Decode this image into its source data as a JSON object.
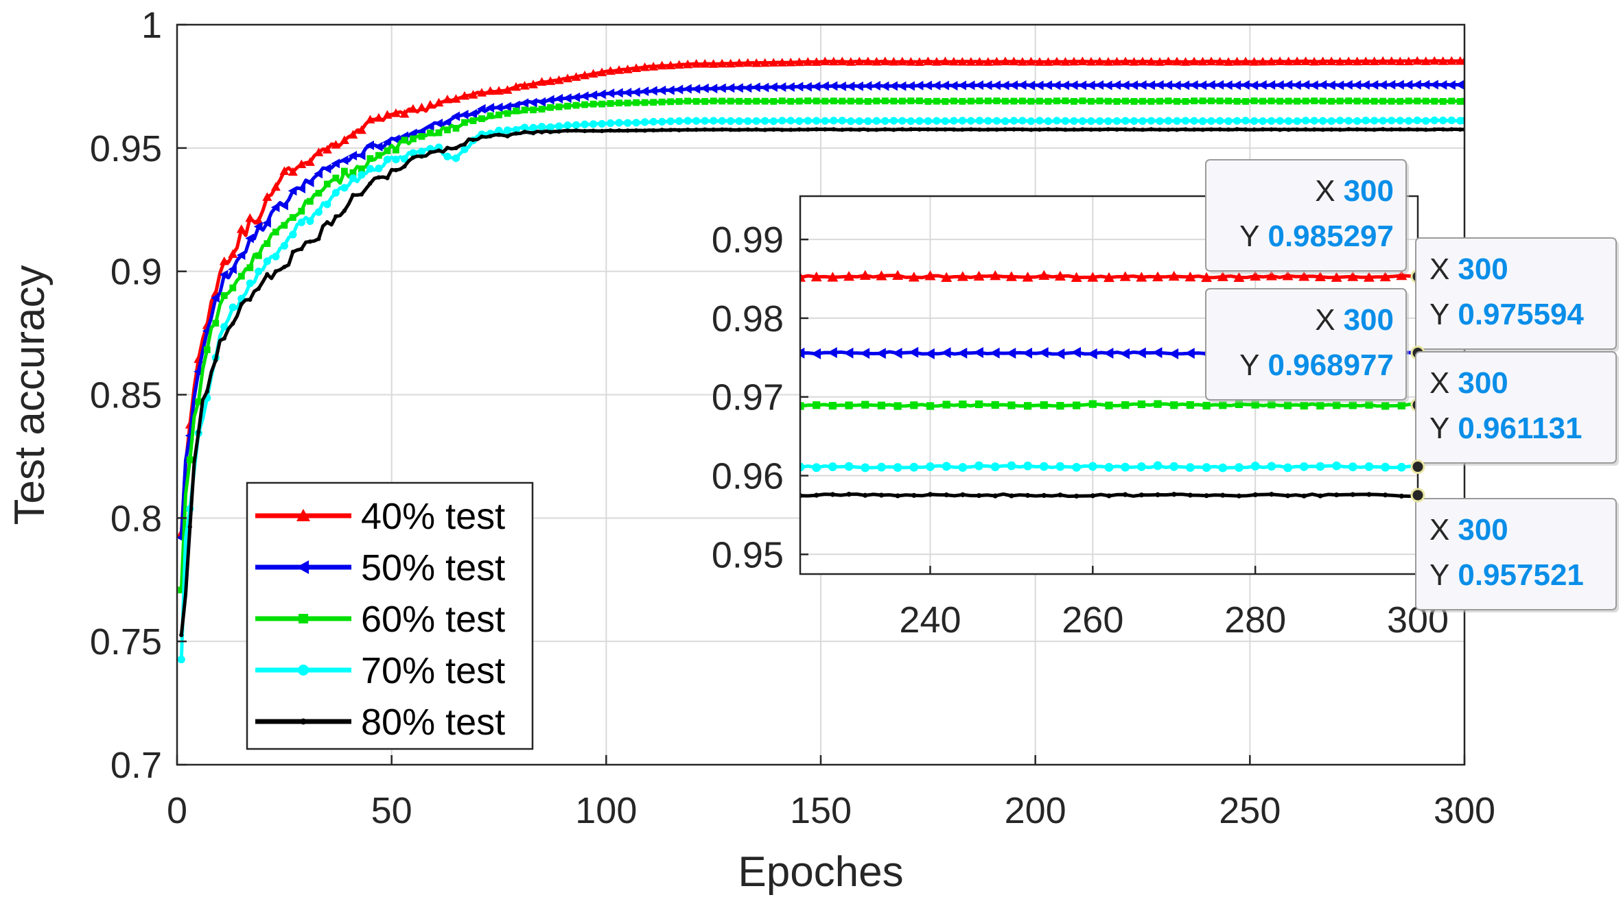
{
  "chart_data": {
    "type": "line",
    "title": "",
    "xlabel": "Epoches",
    "ylabel": "Test accuracy",
    "xlim": [
      0,
      300
    ],
    "ylim": [
      0.7,
      1.0
    ],
    "xticks": [
      0,
      50,
      100,
      150,
      200,
      250,
      300
    ],
    "yticks": [
      0.7,
      0.75,
      0.8,
      0.85,
      0.9,
      0.95,
      1.0
    ],
    "xtick_labels": [
      "0",
      "50",
      "100",
      "150",
      "200",
      "250",
      "300"
    ],
    "ytick_labels": [
      "0.7",
      "0.75",
      "0.8",
      "0.85",
      "0.9",
      "0.95",
      "1"
    ],
    "grid": true,
    "legend_position": "bottom-left",
    "series": [
      {
        "name": "40% test",
        "color": "#ff0000",
        "marker": "triangle-up",
        "final": 0.985297,
        "x": [
          1,
          2,
          4,
          6,
          8,
          10,
          15,
          20,
          25,
          30,
          35,
          40,
          45,
          50,
          55,
          60,
          65,
          70,
          80,
          90,
          100,
          110,
          120,
          150,
          200,
          250,
          300
        ],
        "y": [
          0.796,
          0.82,
          0.855,
          0.873,
          0.888,
          0.9,
          0.915,
          0.925,
          0.94,
          0.945,
          0.95,
          0.955,
          0.96,
          0.963,
          0.965,
          0.967,
          0.97,
          0.972,
          0.975,
          0.978,
          0.981,
          0.983,
          0.984,
          0.985,
          0.985,
          0.985,
          0.985297
        ]
      },
      {
        "name": "50% test",
        "color": "#0000ee",
        "marker": "triangle-left",
        "final": 0.975594,
        "x": [
          1,
          2,
          4,
          6,
          8,
          10,
          15,
          20,
          25,
          30,
          35,
          40,
          45,
          50,
          55,
          60,
          65,
          70,
          80,
          90,
          100,
          110,
          120,
          150,
          200,
          250,
          300
        ],
        "y": [
          0.79,
          0.822,
          0.85,
          0.866,
          0.88,
          0.893,
          0.908,
          0.918,
          0.928,
          0.936,
          0.942,
          0.946,
          0.95,
          0.953,
          0.956,
          0.959,
          0.962,
          0.965,
          0.968,
          0.97,
          0.972,
          0.973,
          0.974,
          0.975,
          0.9755,
          0.9755,
          0.975594
        ]
      },
      {
        "name": "60% test",
        "color": "#00e000",
        "marker": "square",
        "final": 0.968977,
        "x": [
          1,
          2,
          4,
          6,
          8,
          10,
          15,
          20,
          25,
          30,
          35,
          40,
          45,
          50,
          55,
          60,
          65,
          70,
          80,
          90,
          100,
          110,
          120,
          150,
          200,
          250,
          300
        ],
        "y": [
          0.77,
          0.81,
          0.84,
          0.86,
          0.875,
          0.885,
          0.9,
          0.91,
          0.918,
          0.927,
          0.934,
          0.94,
          0.945,
          0.95,
          0.953,
          0.956,
          0.959,
          0.962,
          0.965,
          0.967,
          0.968,
          0.9685,
          0.969,
          0.969,
          0.969,
          0.969,
          0.968977
        ]
      },
      {
        "name": "70% test",
        "color": "#00ffff",
        "marker": "circle",
        "final": 0.961131,
        "x": [
          1,
          2,
          4,
          6,
          8,
          10,
          15,
          20,
          25,
          30,
          35,
          40,
          45,
          50,
          55,
          60,
          65,
          70,
          80,
          90,
          100,
          110,
          120,
          150,
          200,
          250,
          300
        ],
        "y": [
          0.745,
          0.79,
          0.82,
          0.843,
          0.86,
          0.873,
          0.89,
          0.903,
          0.912,
          0.92,
          0.928,
          0.935,
          0.94,
          0.945,
          0.948,
          0.95,
          0.946,
          0.955,
          0.958,
          0.959,
          0.96,
          0.9605,
          0.961,
          0.961,
          0.961,
          0.961,
          0.961131
        ]
      },
      {
        "name": "80% test",
        "color": "#000000",
        "marker": "point",
        "final": 0.957521,
        "x": [
          1,
          2,
          4,
          6,
          8,
          10,
          15,
          20,
          25,
          30,
          35,
          40,
          45,
          50,
          55,
          60,
          65,
          70,
          80,
          90,
          100,
          110,
          120,
          150,
          200,
          250,
          300
        ],
        "y": [
          0.75,
          0.77,
          0.82,
          0.845,
          0.86,
          0.87,
          0.885,
          0.895,
          0.903,
          0.91,
          0.918,
          0.928,
          0.936,
          0.94,
          0.945,
          0.948,
          0.951,
          0.954,
          0.956,
          0.957,
          0.957,
          0.9572,
          0.9574,
          0.9575,
          0.9575,
          0.9575,
          0.957521
        ]
      }
    ],
    "inset": {
      "xlim": [
        224,
        300
      ],
      "ylim": [
        0.9475,
        0.9955
      ],
      "xticks": [
        240,
        260,
        280,
        300
      ],
      "yticks": [
        0.95,
        0.96,
        0.97,
        0.98,
        0.99
      ],
      "xtick_labels": [
        "240",
        "260",
        "280",
        "300"
      ],
      "ytick_labels": [
        "0.95",
        "0.96",
        "0.97",
        "0.98",
        "0.99"
      ],
      "grid": true
    },
    "datatips": [
      {
        "series": "40% test",
        "x_label": "X",
        "x_value": "300",
        "y_label": "Y",
        "y_value": "0.985297"
      },
      {
        "series": "50% test",
        "x_label": "X",
        "x_value": "300",
        "y_label": "Y",
        "y_value": "0.975594"
      },
      {
        "series": "60% test",
        "x_label": "X",
        "x_value": "300",
        "y_label": "Y",
        "y_value": "0.968977"
      },
      {
        "series": "70% test",
        "x_label": "X",
        "x_value": "300",
        "y_label": "Y",
        "y_value": "0.961131"
      },
      {
        "series": "80% test",
        "x_label": "X",
        "x_value": "300",
        "y_label": "Y",
        "y_value": "0.957521"
      }
    ],
    "datatip_value_color": "#0a8ee8"
  }
}
